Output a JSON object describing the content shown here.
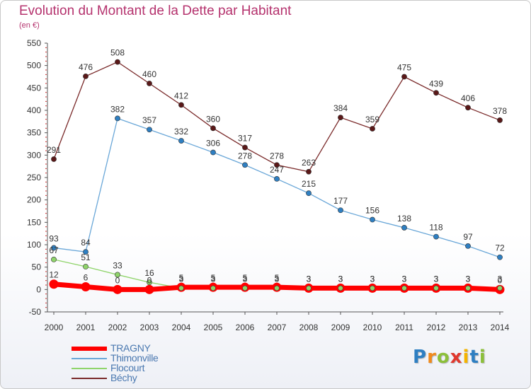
{
  "title": "Evolution du Montant de la Dette par Habitant",
  "subtitle": "(en €)",
  "logo": {
    "letters": [
      {
        "ch": "P",
        "color": "#2e7fc2"
      },
      {
        "ch": "r",
        "color": "#f08a1c"
      },
      {
        "ch": "o",
        "color": "#8cbf3a"
      },
      {
        "ch": "x",
        "color": "#e0382e"
      },
      {
        "ch": "i",
        "color": "#f4b400"
      },
      {
        "ch": "t",
        "color": "#2e7fc2"
      },
      {
        "ch": "i",
        "color": "#8cbf3a"
      }
    ]
  },
  "chart_data": {
    "type": "line",
    "title": "Evolution du Montant de la Dette par Habitant",
    "subtitle": "(en €)",
    "xlabel": "",
    "ylabel": "",
    "ylim": [
      -50,
      550
    ],
    "yticks": [
      -50,
      0,
      50,
      100,
      150,
      200,
      250,
      300,
      350,
      400,
      450,
      500,
      550
    ],
    "grid": false,
    "legend_position": "bottom-left",
    "categories": [
      "2000",
      "2001",
      "2002",
      "2003",
      "2004",
      "2005",
      "2006",
      "2007",
      "2008",
      "2009",
      "2010",
      "2011",
      "2012",
      "2013",
      "2014"
    ],
    "series": [
      {
        "name": "TRAGNY",
        "color": "#ff0000",
        "values": [
          12,
          6,
          0,
          0,
          5,
          5,
          5,
          5,
          3,
          3,
          3,
          3,
          3,
          3,
          0
        ]
      },
      {
        "name": "Thimonville",
        "color": "#6aa7d8",
        "values": [
          93,
          84,
          382,
          357,
          332,
          306,
          278,
          247,
          215,
          177,
          156,
          138,
          118,
          97,
          72
        ]
      },
      {
        "name": "Flocourt",
        "color": "#8fd46a",
        "values": [
          67,
          51,
          33,
          16,
          3,
          3,
          3,
          3,
          3,
          3,
          3,
          3,
          3,
          3,
          3
        ]
      },
      {
        "name": "Béchy",
        "color": "#7a2a2a",
        "values": [
          291,
          476,
          508,
          460,
          412,
          360,
          317,
          278,
          263,
          384,
          359,
          475,
          439,
          406,
          378
        ]
      }
    ]
  }
}
